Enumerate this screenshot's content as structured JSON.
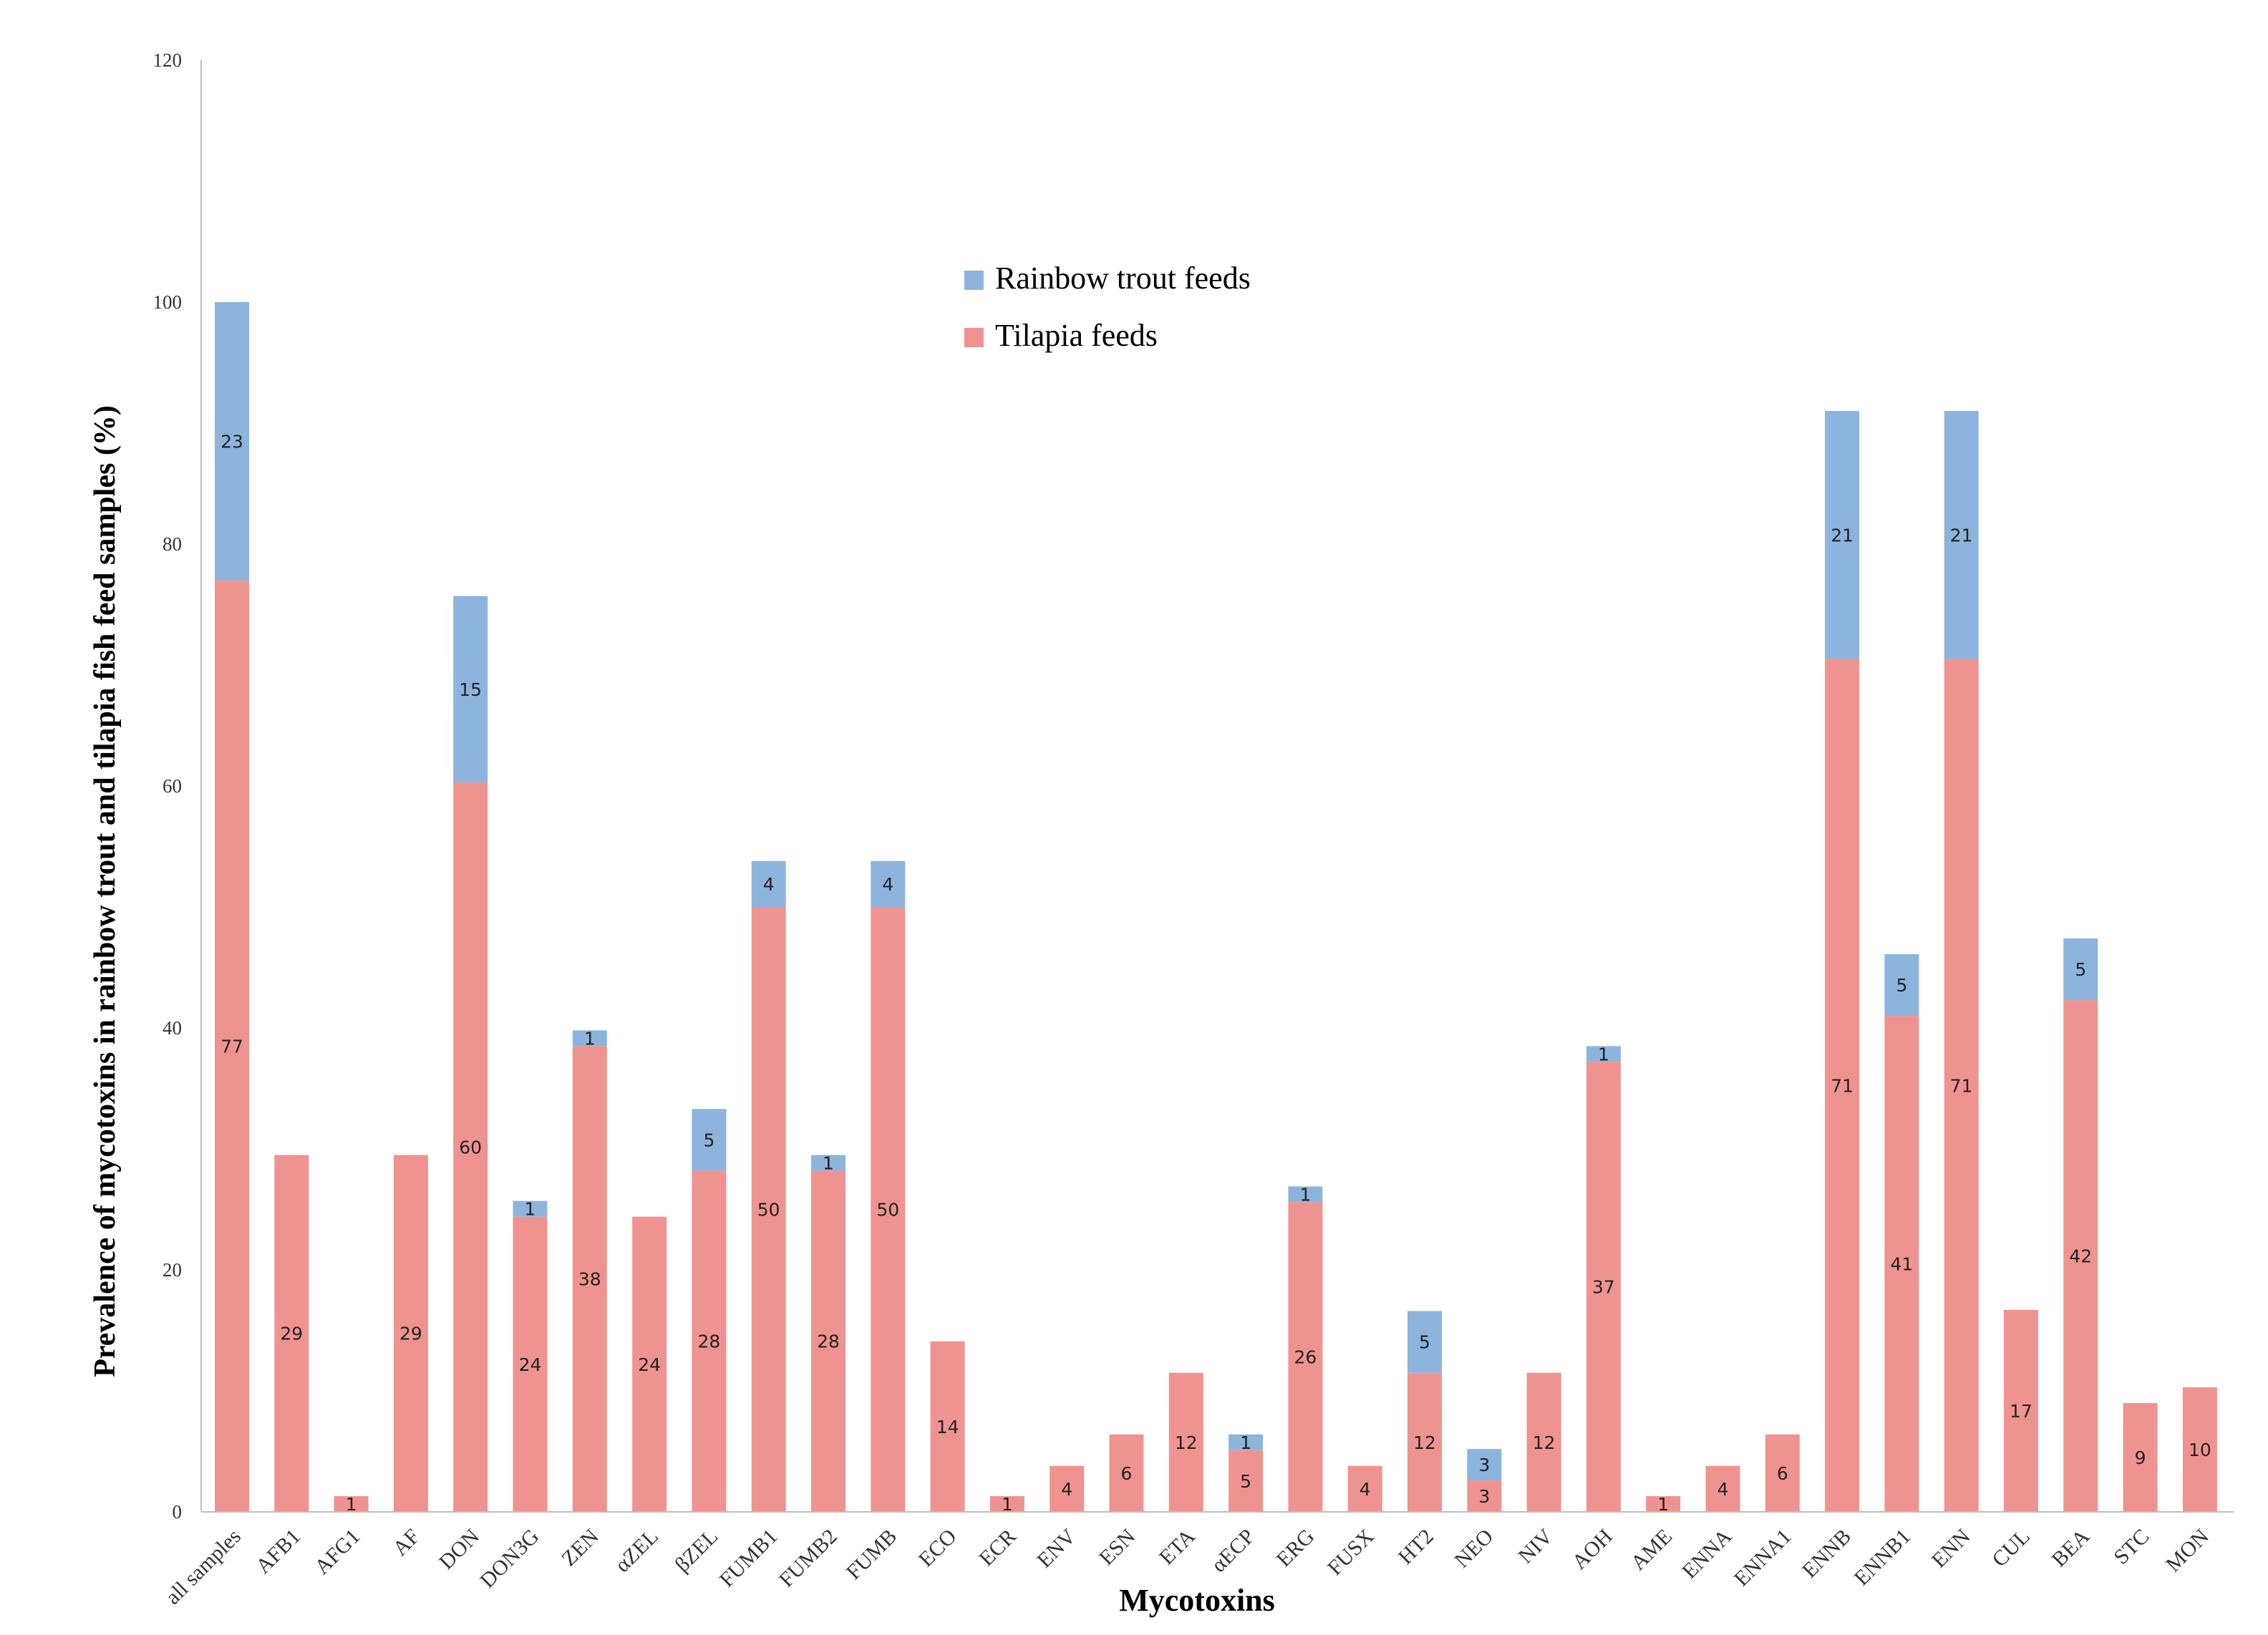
{
  "chart_data": {
    "type": "bar",
    "stacked": true,
    "title": "",
    "xlabel": "Mycotoxins",
    "ylabel": "Prevalence of mycotoxins in rainbow trout and tilapia  fish feed samples (%)",
    "ylim": [
      0,
      120
    ],
    "yticks": [
      "0",
      "20",
      "40",
      "60",
      "80",
      "100",
      "120"
    ],
    "grid": false,
    "legend_position": "top-center",
    "colors": {
      "tilapia": "#ef9391",
      "trout": "#8db4dc"
    },
    "categories": [
      "all samples",
      "AFB1",
      "AFG1",
      "AF",
      "DON",
      "DON3G",
      "ZEN",
      "αZEL",
      "βZEL",
      "FUMB1",
      "FUMB2",
      "FUMB",
      "ECO",
      "ECR",
      "ENV",
      "ESN",
      "ETA",
      "αECP",
      "ERG",
      "FUSX",
      "HT2",
      "NEO",
      "NIV",
      "AOH",
      "AME",
      "ENNA",
      "ENNA1",
      "ENNB",
      "ENNB1",
      "ENN",
      "CUL",
      "BEA",
      "STC",
      "MON"
    ],
    "series": [
      {
        "name": "Tilapia feeds",
        "values": [
          77,
          29.5,
          1.3,
          29.5,
          60.3,
          24.4,
          38.5,
          24.4,
          28.2,
          50,
          28.2,
          50,
          14.1,
          1.3,
          3.8,
          6.4,
          11.5,
          5.1,
          25.6,
          3.8,
          11.5,
          2.6,
          11.5,
          37.2,
          1.3,
          3.8,
          6.4,
          70.5,
          41,
          70.5,
          16.7,
          42.3,
          9,
          10.3
        ],
        "labels": [
          "77",
          "29",
          "1",
          "29",
          "60",
          "24",
          "38",
          "24",
          "28",
          "50",
          "28",
          "50",
          "14",
          "1",
          "4",
          "6",
          "12",
          "5",
          "26",
          "4",
          "12",
          "3",
          "12",
          "37",
          "1",
          "4",
          "6",
          "71",
          "41",
          "71",
          "17",
          "42",
          "9",
          "10"
        ]
      },
      {
        "name": "Rainbow trout feeds",
        "values": [
          23,
          0,
          0,
          0,
          15.4,
          1.3,
          1.3,
          0,
          5.1,
          3.8,
          1.3,
          3.8,
          0,
          0,
          0,
          0,
          0,
          1.3,
          1.3,
          0,
          5.1,
          2.6,
          0,
          1.3,
          0,
          0,
          0,
          20.5,
          5.1,
          20.5,
          0,
          5.1,
          0,
          0
        ],
        "labels": [
          "23",
          "",
          "",
          "",
          "15",
          "1",
          "1",
          "",
          "5",
          "4",
          "1",
          "4",
          "",
          "",
          "",
          "",
          "",
          "1",
          "1",
          "",
          "5",
          "3",
          "",
          "1",
          "",
          "",
          "",
          "21",
          "5",
          "21",
          "",
          "5",
          "",
          ""
        ]
      }
    ]
  }
}
